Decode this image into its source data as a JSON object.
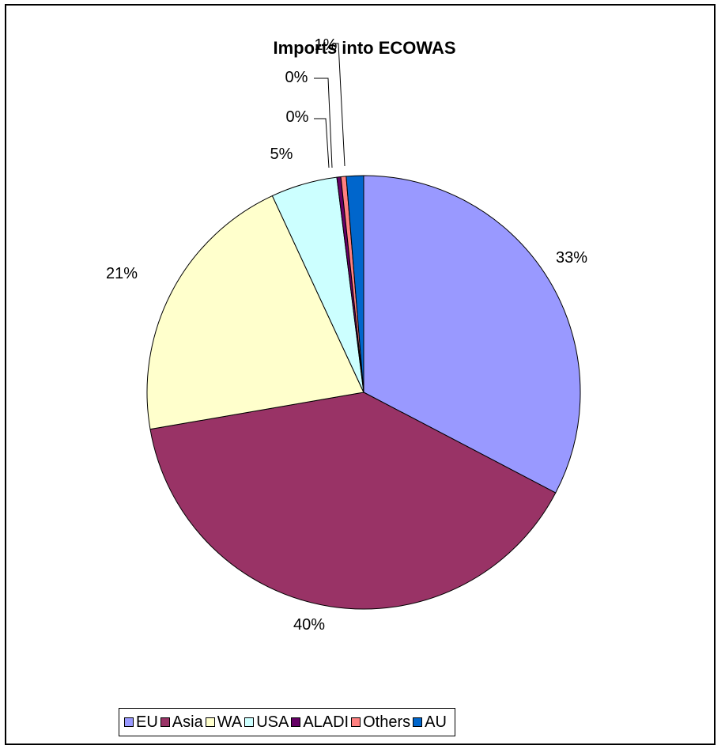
{
  "chart_data": {
    "type": "pie",
    "title": "Imports into ECOWAS",
    "categories": [
      "EU",
      "Asia",
      "WA",
      "USA",
      "ALADI",
      "Others",
      "AU"
    ],
    "values": [
      33,
      40,
      21,
      5,
      0.3,
      0.4,
      1.3
    ],
    "data_labels": [
      "33%",
      "40%",
      "21%",
      "5%",
      "0%",
      "0%",
      "1%"
    ],
    "colors": [
      "#9999FF",
      "#993366",
      "#FFFFCC",
      "#CCFFFF",
      "#660066",
      "#FF8080",
      "#0066CC"
    ],
    "legend_position": "bottom"
  }
}
